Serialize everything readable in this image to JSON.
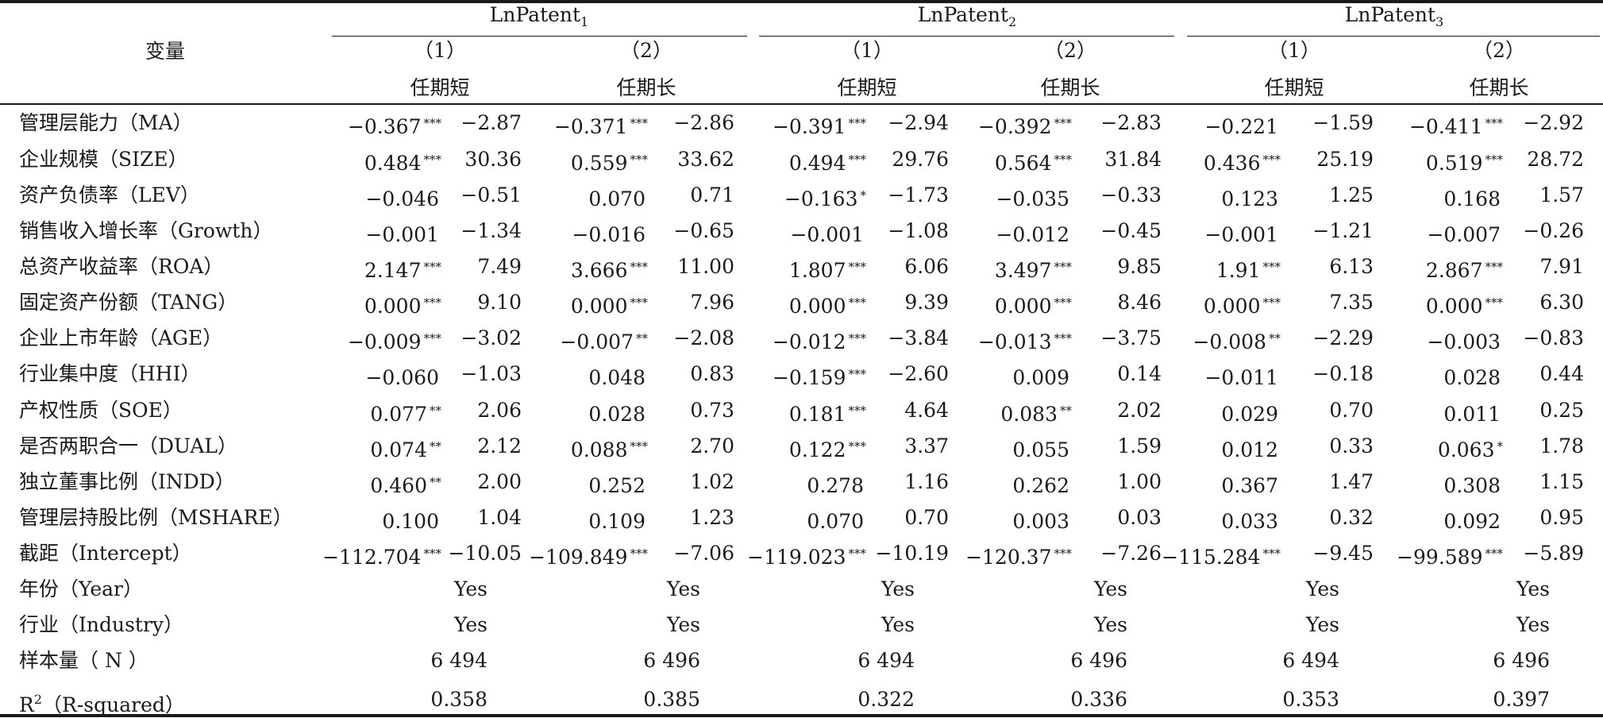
{
  "header": {
    "var_label": "变量",
    "groups": [
      {
        "name": "LnPatent",
        "sub": "1"
      },
      {
        "name": "LnPatent",
        "sub": "2"
      },
      {
        "name": "LnPatent",
        "sub": "3"
      }
    ],
    "col_nums": [
      "（1）",
      "（2）",
      "（1）",
      "（2）",
      "（1）",
      "（2）"
    ],
    "col_names": [
      "任期短",
      "任期长",
      "任期短",
      "任期长",
      "任期短",
      "任期长"
    ]
  },
  "rows": [
    {
      "label": "管理层能力（MA）",
      "cells": [
        {
          "coef": "−0.367",
          "stars": "***",
          "t": "−2.87"
        },
        {
          "coef": "−0.371",
          "stars": "***",
          "t": "−2.86"
        },
        {
          "coef": "−0.391",
          "stars": "***",
          "t": "−2.94"
        },
        {
          "coef": "−0.392",
          "stars": "***",
          "t": "−2.83"
        },
        {
          "coef": "−0.221",
          "stars": "",
          "t": "−1.59"
        },
        {
          "coef": "−0.411",
          "stars": "***",
          "t": "−2.92"
        }
      ]
    },
    {
      "label": "企业规模（SIZE）",
      "cells": [
        {
          "coef": "0.484",
          "stars": "***",
          "t": "30.36"
        },
        {
          "coef": "0.559",
          "stars": "***",
          "t": "33.62"
        },
        {
          "coef": "0.494",
          "stars": "***",
          "t": "29.76"
        },
        {
          "coef": "0.564",
          "stars": "***",
          "t": "31.84"
        },
        {
          "coef": "0.436",
          "stars": "***",
          "t": "25.19"
        },
        {
          "coef": "0.519",
          "stars": "***",
          "t": "28.72"
        }
      ]
    },
    {
      "label": "资产负债率（LEV）",
      "cells": [
        {
          "coef": "−0.046",
          "stars": "",
          "t": "−0.51"
        },
        {
          "coef": "0.070",
          "stars": "",
          "t": "0.71"
        },
        {
          "coef": "−0.163",
          "stars": "*",
          "t": "−1.73"
        },
        {
          "coef": "−0.035",
          "stars": "",
          "t": "−0.33"
        },
        {
          "coef": "0.123",
          "stars": "",
          "t": "1.25"
        },
        {
          "coef": "0.168",
          "stars": "",
          "t": "1.57"
        }
      ]
    },
    {
      "label": "销售收入增长率（Growth）",
      "cells": [
        {
          "coef": "−0.001",
          "stars": "",
          "t": "−1.34"
        },
        {
          "coef": "−0.016",
          "stars": "",
          "t": "−0.65"
        },
        {
          "coef": "−0.001",
          "stars": "",
          "t": "−1.08"
        },
        {
          "coef": "−0.012",
          "stars": "",
          "t": "−0.45"
        },
        {
          "coef": "−0.001",
          "stars": "",
          "t": "−1.21"
        },
        {
          "coef": "−0.007",
          "stars": "",
          "t": "−0.26"
        }
      ]
    },
    {
      "label": "总资产收益率（ROA）",
      "cells": [
        {
          "coef": "2.147",
          "stars": "***",
          "t": "7.49"
        },
        {
          "coef": "3.666",
          "stars": "***",
          "t": "11.00"
        },
        {
          "coef": "1.807",
          "stars": "***",
          "t": "6.06"
        },
        {
          "coef": "3.497",
          "stars": "***",
          "t": "9.85"
        },
        {
          "coef": "1.91",
          "stars": "***",
          "t": "6.13"
        },
        {
          "coef": "2.867",
          "stars": "***",
          "t": "7.91"
        }
      ]
    },
    {
      "label": "固定资产份额（TANG）",
      "cells": [
        {
          "coef": "0.000",
          "stars": "***",
          "t": "9.10"
        },
        {
          "coef": "0.000",
          "stars": "***",
          "t": "7.96"
        },
        {
          "coef": "0.000",
          "stars": "***",
          "t": "9.39"
        },
        {
          "coef": "0.000",
          "stars": "***",
          "t": "8.46"
        },
        {
          "coef": "0.000",
          "stars": "***",
          "t": "7.35"
        },
        {
          "coef": "0.000",
          "stars": "***",
          "t": "6.30"
        }
      ]
    },
    {
      "label": "企业上市年龄（AGE）",
      "cells": [
        {
          "coef": "−0.009",
          "stars": "***",
          "t": "−3.02"
        },
        {
          "coef": "−0.007",
          "stars": "**",
          "t": "−2.08"
        },
        {
          "coef": "−0.012",
          "stars": "***",
          "t": "−3.84"
        },
        {
          "coef": "−0.013",
          "stars": "***",
          "t": "−3.75"
        },
        {
          "coef": "−0.008",
          "stars": "**",
          "t": "−2.29"
        },
        {
          "coef": "−0.003",
          "stars": "",
          "t": "−0.83"
        }
      ]
    },
    {
      "label": "行业集中度（HHI）",
      "cells": [
        {
          "coef": "−0.060",
          "stars": "",
          "t": "−1.03"
        },
        {
          "coef": "0.048",
          "stars": "",
          "t": "0.83"
        },
        {
          "coef": "−0.159",
          "stars": "***",
          "t": "−2.60"
        },
        {
          "coef": "0.009",
          "stars": "",
          "t": "0.14"
        },
        {
          "coef": "−0.011",
          "stars": "",
          "t": "−0.18"
        },
        {
          "coef": "0.028",
          "stars": "",
          "t": "0.44"
        }
      ]
    },
    {
      "label": "产权性质（SOE）",
      "cells": [
        {
          "coef": "0.077",
          "stars": "**",
          "t": "2.06"
        },
        {
          "coef": "0.028",
          "stars": "",
          "t": "0.73"
        },
        {
          "coef": "0.181",
          "stars": "***",
          "t": "4.64"
        },
        {
          "coef": "0.083",
          "stars": "**",
          "t": "2.02"
        },
        {
          "coef": "0.029",
          "stars": "",
          "t": "0.70"
        },
        {
          "coef": "0.011",
          "stars": "",
          "t": "0.25"
        }
      ]
    },
    {
      "label": "是否两职合一（DUAL）",
      "cells": [
        {
          "coef": "0.074",
          "stars": "**",
          "t": "2.12"
        },
        {
          "coef": "0.088",
          "stars": "***",
          "t": "2.70"
        },
        {
          "coef": "0.122",
          "stars": "***",
          "t": "3.37"
        },
        {
          "coef": "0.055",
          "stars": "",
          "t": "1.59"
        },
        {
          "coef": "0.012",
          "stars": "",
          "t": "0.33"
        },
        {
          "coef": "0.063",
          "stars": "*",
          "t": "1.78"
        }
      ]
    },
    {
      "label": "独立董事比例（INDD）",
      "cells": [
        {
          "coef": "0.460",
          "stars": "**",
          "t": "2.00"
        },
        {
          "coef": "0.252",
          "stars": "",
          "t": "1.02"
        },
        {
          "coef": "0.278",
          "stars": "",
          "t": "1.16"
        },
        {
          "coef": "0.262",
          "stars": "",
          "t": "1.00"
        },
        {
          "coef": "0.367",
          "stars": "",
          "t": "1.47"
        },
        {
          "coef": "0.308",
          "stars": "",
          "t": "1.15"
        }
      ]
    },
    {
      "label": "管理层持股比例（MSHARE）",
      "cells": [
        {
          "coef": "0.100",
          "stars": "",
          "t": "1.04"
        },
        {
          "coef": "0.109",
          "stars": "",
          "t": "1.23"
        },
        {
          "coef": "0.070",
          "stars": "",
          "t": "0.70"
        },
        {
          "coef": "0.003",
          "stars": "",
          "t": "0.03"
        },
        {
          "coef": "0.033",
          "stars": "",
          "t": "0.32"
        },
        {
          "coef": "0.092",
          "stars": "",
          "t": "0.95"
        }
      ]
    },
    {
      "label": "截距（Intercept）",
      "cells": [
        {
          "coef": "−112.704",
          "stars": "***",
          "t": "−10.05"
        },
        {
          "coef": "−109.849",
          "stars": "***",
          "t": "−7.06"
        },
        {
          "coef": "−119.023",
          "stars": "***",
          "t": "−10.19"
        },
        {
          "coef": "−120.37",
          "stars": "***",
          "t": "−7.26"
        },
        {
          "coef": "−115.284",
          "stars": "***",
          "t": "−9.45"
        },
        {
          "coef": "−99.589",
          "stars": "***",
          "t": "−5.89"
        }
      ]
    }
  ],
  "summary_rows": [
    {
      "label": "年份（Year）",
      "values": [
        "Yes",
        "Yes",
        "Yes",
        "Yes",
        "Yes",
        "Yes"
      ]
    },
    {
      "label": "行业（Industry）",
      "values": [
        "Yes",
        "Yes",
        "Yes",
        "Yes",
        "Yes",
        "Yes"
      ]
    },
    {
      "label": "样本量（ N ）",
      "values": [
        "6 494",
        "6 496",
        "6 494",
        "6 496",
        "6 494",
        "6 496"
      ]
    }
  ],
  "r2_row": {
    "label_base": "R",
    "label_sup": "2",
    "label_rest": "（R-squared）",
    "values": [
      "0.358",
      "0.385",
      "0.322",
      "0.336",
      "0.353",
      "0.397"
    ]
  }
}
